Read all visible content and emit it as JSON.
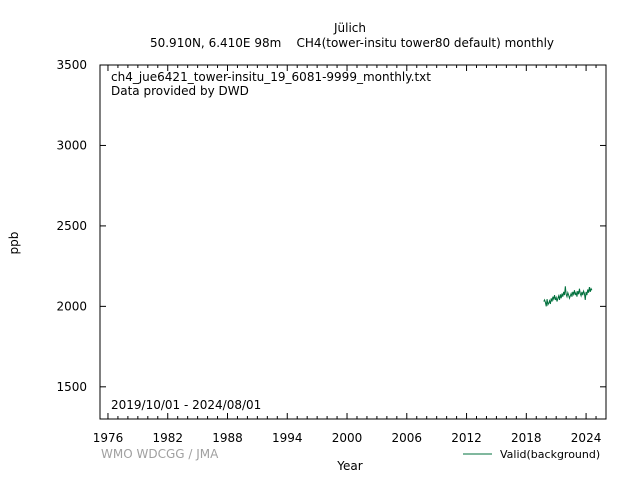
{
  "header": {
    "station": "Jülich",
    "subtitle": "50.910N, 6.410E 98m    CH4(tower-insitu tower80 default) monthly"
  },
  "annotations": {
    "filename": "ch4_jue6421_tower-insitu_19_6081-9999_monthly.txt",
    "provider": "Data provided by DWD",
    "period": "2019/10/01 - 2024/08/01"
  },
  "footer": {
    "credit": "WMO WDCGG / JMA"
  },
  "colors": {
    "series": "#00703c",
    "credit": "#a0a0a0"
  },
  "chart_data": {
    "type": "line",
    "xlabel": "Year",
    "ylabel": "ppb",
    "xlim": [
      1975.2,
      2026.0
    ],
    "ylim": [
      1300,
      3500
    ],
    "xticks": [
      1976,
      1982,
      1988,
      1994,
      2000,
      2006,
      2012,
      2018,
      2024
    ],
    "yticks": [
      1500,
      2000,
      2500,
      3000,
      3500
    ],
    "grid": false,
    "legend": "bottom-right",
    "series": [
      {
        "name": "Valid(background)",
        "x": [
          "2019/10",
          "2019/11",
          "2019/12",
          "2020/01",
          "2020/02",
          "2020/03",
          "2020/04",
          "2020/05",
          "2020/06",
          "2020/07",
          "2020/08",
          "2020/09",
          "2020/10",
          "2020/11",
          "2020/12",
          "2021/01",
          "2021/02",
          "2021/03",
          "2021/04",
          "2021/05",
          "2021/06",
          "2021/07",
          "2021/08",
          "2021/09",
          "2021/10",
          "2021/11",
          "2021/12",
          "2022/01",
          "2022/02",
          "2022/03",
          "2022/04",
          "2022/05",
          "2022/06",
          "2022/07",
          "2022/08",
          "2022/09",
          "2022/10",
          "2022/11",
          "2022/12",
          "2023/01",
          "2023/02",
          "2023/03",
          "2023/04",
          "2023/05",
          "2023/06",
          "2023/07",
          "2023/08",
          "2023/09",
          "2023/10",
          "2023/11",
          "2023/12",
          "2024/01",
          "2024/02",
          "2024/03",
          "2024/04",
          "2024/05",
          "2024/06",
          "2024/07",
          "2024/08"
        ],
        "values": [
          2030,
          2040,
          2025,
          2000,
          2045,
          2010,
          2020,
          2035,
          2015,
          2050,
          2030,
          2060,
          2045,
          2070,
          2040,
          2055,
          2030,
          2050,
          2065,
          2040,
          2075,
          2050,
          2080,
          2060,
          2090,
          2070,
          2125,
          2075,
          2060,
          2085,
          2070,
          2050,
          2065,
          2080,
          2060,
          2090,
          2075,
          2100,
          2070,
          2085,
          2060,
          2095,
          2075,
          2110,
          2080,
          2065,
          2090,
          2070,
          2095,
          2080,
          2040,
          2090,
          2070,
          2105,
          2085,
          2120,
          2090,
          2110,
          2100
        ]
      }
    ]
  }
}
